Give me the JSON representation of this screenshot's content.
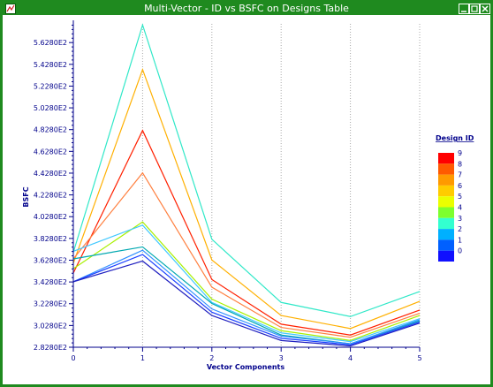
{
  "window": {
    "title": "Multi-Vector - ID vs BSFC on Designs Table",
    "buttons": [
      "minimize",
      "maximize",
      "close"
    ]
  },
  "colors": {
    "frame": "#1f8a1f",
    "axis": "#00008b",
    "axis_text": "#00008b",
    "grid": "#a9a9a9"
  },
  "legend": {
    "title": "Design ID",
    "labels": [
      "9",
      "8",
      "7",
      "6",
      "5",
      "4",
      "3",
      "2",
      "1",
      "0"
    ],
    "colors": [
      "#ff0000",
      "#ff5a00",
      "#ff9a00",
      "#ffcc00",
      "#eaff00",
      "#7dff2d",
      "#33ffd0",
      "#00b0ff",
      "#0060ff",
      "#1010ff"
    ]
  },
  "chart_data": {
    "type": "line",
    "title": "",
    "xlabel": "Vector Components",
    "ylabel": "BSFC",
    "x": [
      0,
      1,
      2,
      3,
      4,
      5
    ],
    "x_ticks": [
      "0",
      "1",
      "2",
      "3",
      "4",
      "5"
    ],
    "y_ticks": [
      "2.8280E2",
      "3.0280E2",
      "3.2280E2",
      "3.4280E2",
      "3.6280E2",
      "3.8280E2",
      "4.0280E2",
      "4.2280E2",
      "4.4280E2",
      "4.6280E2",
      "4.8280E2",
      "5.0280E2",
      "5.2280E2",
      "5.4280E2",
      "5.6280E2"
    ],
    "y_tick_values": [
      282.8,
      302.8,
      322.8,
      342.8,
      362.8,
      382.8,
      402.8,
      422.8,
      442.8,
      462.8,
      482.8,
      502.8,
      522.8,
      542.8,
      562.8
    ],
    "ylim": [
      282.8,
      580
    ],
    "grid": true,
    "series": [
      {
        "color": "#30e8c8",
        "values": [
          370,
          579,
          382,
          324,
          311,
          334
        ]
      },
      {
        "color": "#ffb000",
        "values": [
          360,
          538,
          363,
          312,
          300,
          325
        ]
      },
      {
        "color": "#ff2000",
        "values": [
          351,
          482,
          345,
          304,
          294,
          317
        ]
      },
      {
        "color": "#ff8040",
        "values": [
          364,
          443,
          338,
          301,
          292,
          314
        ]
      },
      {
        "color": "#a8f000",
        "values": [
          355,
          398,
          327,
          298,
          289,
          312
        ]
      },
      {
        "color": "#40c8ff",
        "values": [
          371,
          395,
          324,
          296,
          288,
          309
        ]
      },
      {
        "color": "#00a8b0",
        "values": [
          364,
          375,
          323,
          294,
          286,
          307
        ]
      },
      {
        "color": "#3090ff",
        "values": [
          343,
          372,
          318,
          293,
          286,
          308
        ]
      },
      {
        "color": "#1a40ff",
        "values": [
          343,
          368,
          315,
          291,
          285,
          306
        ]
      },
      {
        "color": "#2020c0",
        "values": [
          343,
          362,
          312,
          289,
          284,
          305
        ]
      }
    ]
  }
}
